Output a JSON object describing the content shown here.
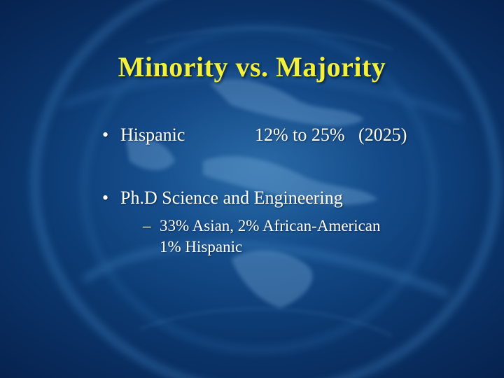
{
  "slide": {
    "title": "Minority vs. Majority",
    "bullets": [
      {
        "marker": "•",
        "text": "Hispanic",
        "stat": "12% to 25%   (2025)"
      },
      {
        "marker": "•",
        "text": "Ph.D Science and Engineering",
        "sub_marker": "–",
        "sub_lines": [
          "33% Asian, 2% African-American",
          "1% Hispanic"
        ]
      }
    ]
  },
  "colors": {
    "title": "#f2f03a",
    "body_text": "#ffffff",
    "background": "#0c3a72"
  }
}
